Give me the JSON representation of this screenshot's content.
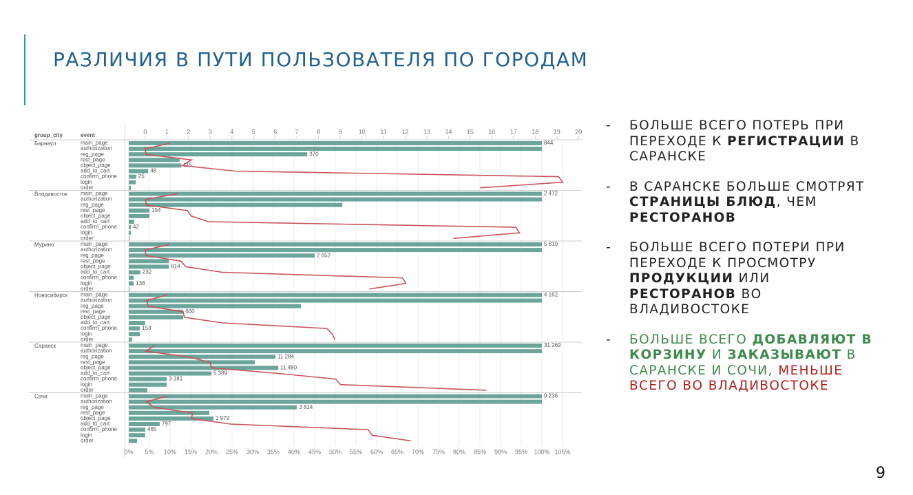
{
  "slide": {
    "title": "РАЗЛИЧИЯ В ПУТИ ПОЛЬЗОВАТЕЛЯ ПО ГОРОДАМ",
    "marker": "-",
    "page_number": "9",
    "bullets": [
      {
        "segments": [
          {
            "text": "БОЛЬШЕ ВСЕГО ПОТЕРЬ ПРИ ПЕРЕХОДЕ К ",
            "style": "normal"
          },
          {
            "text": "РЕГИСТРАЦИИ",
            "style": "bold"
          },
          {
            "text": " В САРАНСКЕ",
            "style": "normal"
          }
        ]
      },
      {
        "segments": [
          {
            "text": "В САРАНСКЕ БОЛЬШЕ СМОТРЯТ ",
            "style": "normal"
          },
          {
            "text": "СТРАНИЦЫ БЛЮД",
            "style": "bold"
          },
          {
            "text": ", ЧЕМ ",
            "style": "normal"
          },
          {
            "text": "РЕСТОРАНОВ",
            "style": "bold"
          }
        ]
      },
      {
        "segments": [
          {
            "text": "БОЛЬШЕ ВСЕГО ПОТЕРИ ПРИ ПЕРЕХОДЕ К ПРОСМОТРУ ",
            "style": "normal"
          },
          {
            "text": "ПРОДУКЦИИ",
            "style": "bold"
          },
          {
            "text": " ИЛИ ",
            "style": "normal"
          },
          {
            "text": "РЕСТОРАНОВ",
            "style": "bold"
          },
          {
            "text": " ВО ВЛАДИВОСТОКЕ",
            "style": "normal"
          }
        ]
      },
      {
        "segments": [
          {
            "text": "БОЛЬШЕ ВСЕГО ",
            "style": "green"
          },
          {
            "text": "ДОБАВЛЯЮТ В КОРЗИНУ",
            "style": "green-bold"
          },
          {
            "text": " И ",
            "style": "green"
          },
          {
            "text": "ЗАКАЗЫВАЮТ",
            "style": "green-bold"
          },
          {
            "text": " В САРАНСКЕ И СОЧИ, ",
            "style": "green"
          },
          {
            "text": "МЕНЬШЕ ВСЕГО ВО ВЛАДИВОСТОКЕ",
            "style": "red"
          }
        ]
      }
    ]
  },
  "chart_data": {
    "type": "bar",
    "column_headers": [
      "group_city",
      "event"
    ],
    "events": [
      "main_page",
      "authorization",
      "reg_page",
      "rest_page",
      "object_page",
      "add_to_cart",
      "confirm_phone",
      "login",
      "order"
    ],
    "color": "#6ba59b",
    "line_color": "#c8545a",
    "xlim": [
      0,
      109
    ],
    "xticks": [
      {
        "value": 0,
        "label": "0%"
      },
      {
        "value": 5,
        "label": "5%"
      },
      {
        "value": 10,
        "label": "10%"
      },
      {
        "value": 15,
        "label": "15%"
      },
      {
        "value": 20,
        "label": "20%"
      },
      {
        "value": 25,
        "label": "25%"
      },
      {
        "value": 30,
        "label": "30%"
      },
      {
        "value": 35,
        "label": "35%"
      },
      {
        "value": 40,
        "label": "40%"
      },
      {
        "value": 45,
        "label": "45%"
      },
      {
        "value": 50,
        "label": "50%"
      },
      {
        "value": 55,
        "label": "55%"
      },
      {
        "value": 60,
        "label": "60%"
      },
      {
        "value": 65,
        "label": "65%"
      },
      {
        "value": 70,
        "label": "70%"
      },
      {
        "value": 75,
        "label": "75%"
      },
      {
        "value": 80,
        "label": "80%"
      },
      {
        "value": 85,
        "label": "85%"
      },
      {
        "value": 90,
        "label": "90%"
      },
      {
        "value": 95,
        "label": "95%"
      },
      {
        "value": 100,
        "label": "100%"
      },
      {
        "value": 105,
        "label": "105%"
      }
    ],
    "x2lim": [
      -0.76,
      20.15
    ],
    "x2ticks": [
      0,
      1,
      2,
      3,
      4,
      5,
      6,
      7,
      8,
      9,
      10,
      11,
      12,
      13,
      14,
      15,
      16,
      17,
      18,
      19,
      20
    ],
    "series": [
      {
        "name": "Барнаул",
        "values": [
          100,
          100,
          43.2,
          12.3,
          12.7,
          4.7,
          1.8,
          1.7,
          0.5
        ],
        "line_values": [
          1.14,
          0,
          0.03,
          2.13,
          1.71,
          4.13,
          19.08,
          19.27,
          15.46
        ],
        "count_labels": [
          "844",
          null,
          "370",
          null,
          "115",
          "48",
          "25",
          null,
          null
        ]
      },
      {
        "name": "Владивосток",
        "values": [
          100,
          100,
          51.7,
          5,
          5,
          1.3,
          0.5,
          0.5,
          0.2
        ],
        "line_values": [
          1.49,
          0.03,
          0.03,
          1.94,
          2.13,
          2.92,
          17.11,
          17.27,
          14.22
        ],
        "count_labels": [
          "2 472",
          null,
          null,
          "154",
          null,
          null,
          "42",
          null,
          null
        ]
      },
      {
        "name": "Мурино",
        "values": [
          100,
          100,
          45,
          9.7,
          9.7,
          2.8,
          1.2,
          1.2,
          0.2
        ],
        "line_values": [
          1.14,
          0,
          0.03,
          1.65,
          1.87,
          3.56,
          11.87,
          12.03,
          10.35
        ],
        "count_labels": [
          "5 810",
          null,
          "2 652",
          null,
          "614",
          "232",
          null,
          "138",
          null
        ]
      },
      {
        "name": "Новосибирск",
        "values": [
          100,
          100,
          41.7,
          13.2,
          13.2,
          4,
          2.7,
          2.7,
          0.8
        ],
        "line_values": [
          1.02,
          0.06,
          0.13,
          1.75,
          1.81,
          3.56,
          8.38,
          8.63,
          8.76
        ],
        "count_labels": [
          "4 162",
          null,
          null,
          "600",
          null,
          null,
          "153",
          null,
          null
        ]
      },
      {
        "name": "Саранск",
        "values": [
          100,
          100,
          35.5,
          30.5,
          36.2,
          20,
          9.2,
          9.2,
          4.5
        ],
        "line_values": [
          0.44,
          0.03,
          1.97,
          2.98,
          3.08,
          6.16,
          8.79,
          9.02,
          15.75
        ],
        "count_labels": [
          "31 269",
          null,
          "11 284",
          null,
          "11 480",
          "5 389",
          "3 181",
          null,
          null
        ]
      },
      {
        "name": "Сочи",
        "values": [
          100,
          100,
          40.7,
          19.5,
          20.5,
          7.5,
          4,
          4,
          2
        ],
        "line_values": [
          1.02,
          0.03,
          0.44,
          2.19,
          2.13,
          3.94,
          10.29,
          10.48,
          12.25
        ],
        "count_labels": [
          "9 236",
          null,
          "3 814",
          null,
          "1 979",
          "797",
          "465",
          null,
          null
        ]
      }
    ]
  }
}
